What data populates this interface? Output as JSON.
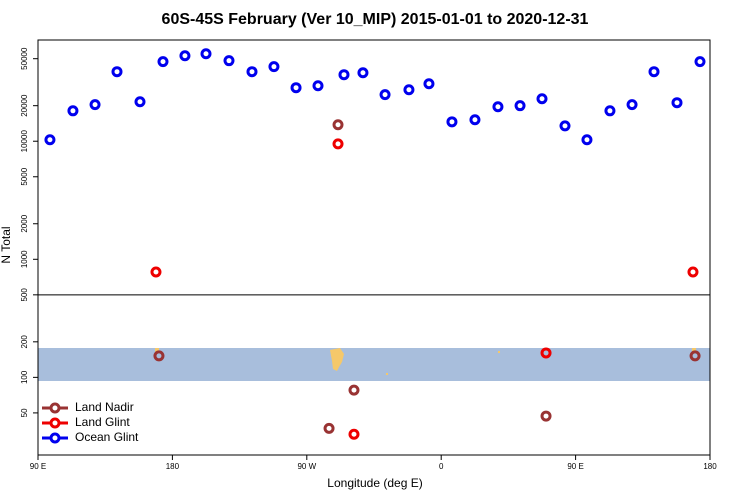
{
  "chart_data": {
    "type": "scatter",
    "title": "60S-45S February (Ver 10_MIP)   2015-01-01 to 2020-12-31",
    "xlabel": "Longitude (deg E)",
    "ylabel": "N Total",
    "xlim": [
      90,
      540
    ],
    "xticks": [
      {
        "value": 90,
        "label": "90 E"
      },
      {
        "value": 180,
        "label": "180"
      },
      {
        "value": 270,
        "label": "90 W"
      },
      {
        "value": 360,
        "label": "0"
      },
      {
        "value": 450,
        "label": "90 E"
      },
      {
        "value": 540,
        "label": "180"
      }
    ],
    "ylim": [
      22,
      72000
    ],
    "log_y": true,
    "yticks": [
      50,
      100,
      200,
      500,
      1000,
      2000,
      5000,
      10000,
      20000,
      50000
    ],
    "reference_line": 500,
    "legend": "bottom-left",
    "series": [
      {
        "name": "Land Nadir",
        "color": "#993333",
        "x": [
          171,
          290.9,
          301.6,
          284.9,
          430.2,
          530
        ],
        "values": [
          152,
          13800,
          78,
          37,
          47,
          152
        ]
      },
      {
        "name": "Land Glint",
        "color": "#ee0000",
        "x": [
          169,
          290.9,
          430.2,
          301.6,
          528.6
        ],
        "values": [
          780,
          9500,
          161,
          33,
          780
        ]
      },
      {
        "name": "Ocean Glint",
        "color": "#0000ee",
        "x": [
          98,
          113.4,
          128.2,
          142.9,
          158.3,
          173.7,
          188.4,
          202.5,
          217.9,
          233.3,
          248,
          262.8,
          277.5,
          294.9,
          307.6,
          322.4,
          338.4,
          351.8,
          367.2,
          382.6,
          398,
          412.8,
          427.5,
          442.9,
          457.6,
          473,
          487.8,
          502.5,
          517.9,
          533.3
        ],
        "values": [
          10300,
          18100,
          20400,
          38800,
          21600,
          47200,
          53000,
          55100,
          48100,
          38800,
          42800,
          28400,
          29500,
          36600,
          38000,
          24800,
          27300,
          30700,
          14600,
          15200,
          19600,
          20000,
          22900,
          13500,
          10300,
          18100,
          20400,
          38800,
          21200,
          47200
        ]
      }
    ]
  }
}
